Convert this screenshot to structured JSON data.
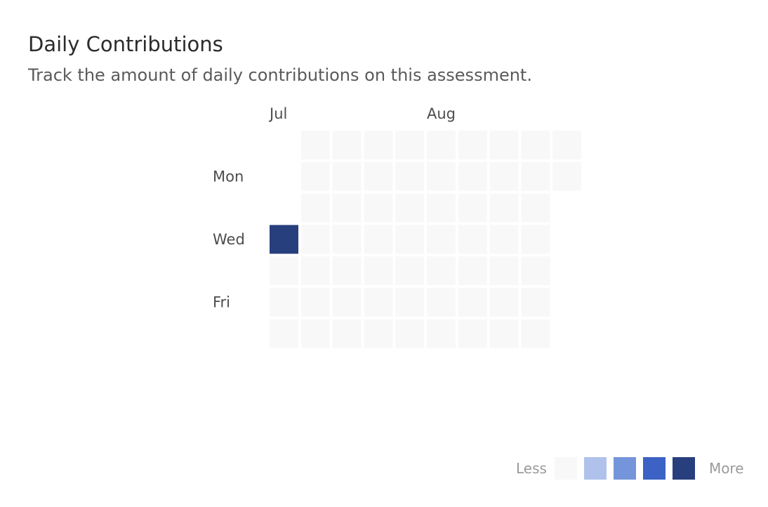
{
  "header": {
    "title": "Daily Contributions",
    "subtitle": "Track the amount of daily contributions on this assessment."
  },
  "chart_data": {
    "type": "heatmap",
    "months": [
      {
        "label": "Jul",
        "week_index": 0
      },
      {
        "label": "Aug",
        "week_index": 5
      }
    ],
    "day_labels": [
      {
        "label": "Mon",
        "day_index": 1
      },
      {
        "label": "Wed",
        "day_index": 3
      },
      {
        "label": "Fri",
        "day_index": 5
      }
    ],
    "weeks": [
      [
        null,
        null,
        null,
        4,
        0,
        0,
        0
      ],
      [
        0,
        0,
        0,
        0,
        0,
        0,
        0
      ],
      [
        0,
        0,
        0,
        0,
        0,
        0,
        0
      ],
      [
        0,
        0,
        0,
        0,
        0,
        0,
        0
      ],
      [
        0,
        0,
        0,
        0,
        0,
        0,
        0
      ],
      [
        0,
        0,
        0,
        0,
        0,
        0,
        0
      ],
      [
        0,
        0,
        0,
        0,
        0,
        0,
        0
      ],
      [
        0,
        0,
        0,
        0,
        0,
        0,
        0
      ],
      [
        0,
        0,
        0,
        0,
        0,
        0,
        0
      ],
      [
        0,
        0,
        null,
        null,
        null,
        null,
        null
      ]
    ],
    "levels": [
      0,
      1,
      2,
      3,
      4
    ]
  },
  "legend": {
    "less_label": "Less",
    "more_label": "More",
    "colors": [
      "#f8f8f8",
      "#b0c2ec",
      "#7595da",
      "#3b62c4",
      "#283f7d"
    ]
  }
}
